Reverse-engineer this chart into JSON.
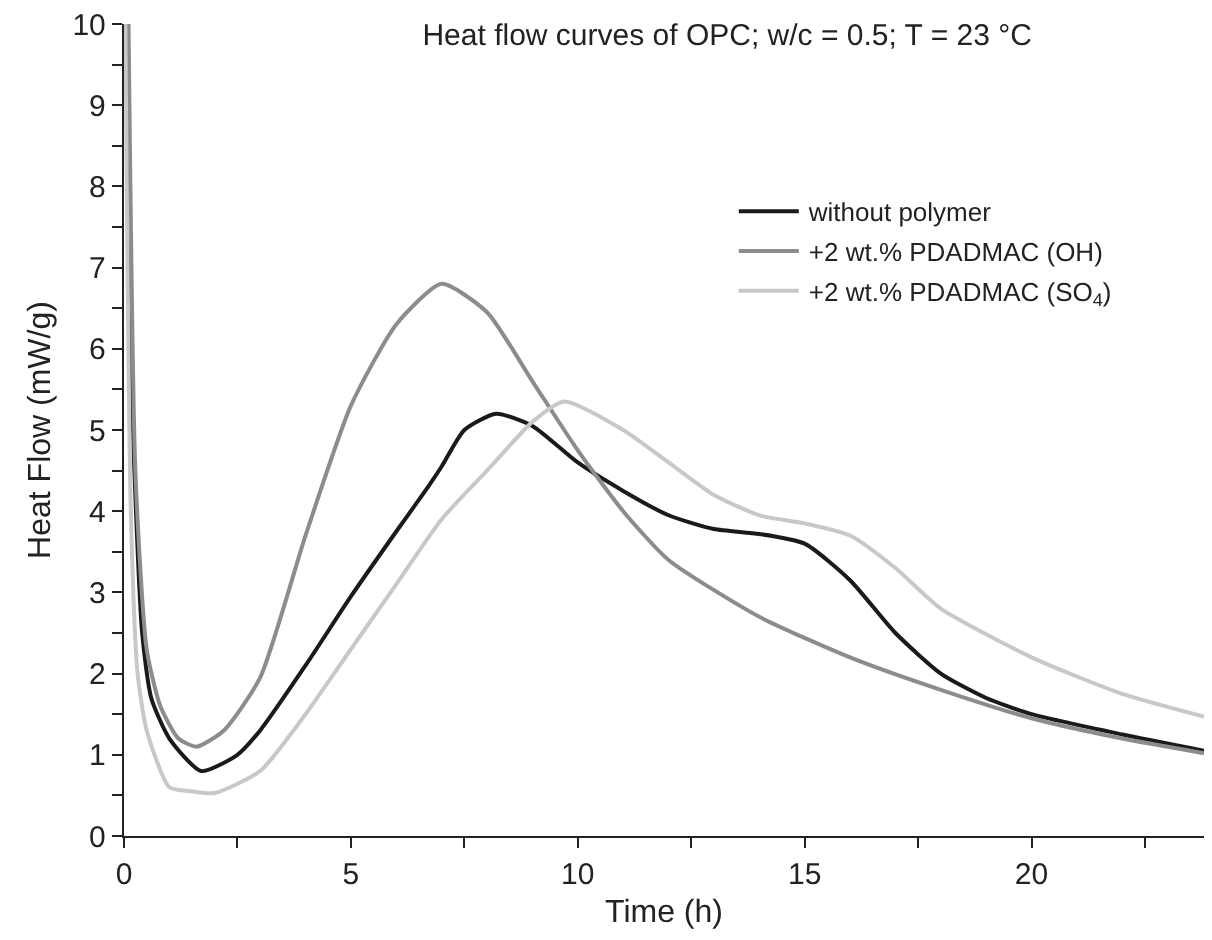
{
  "chart_data": {
    "type": "line",
    "title": "Heat flow curves of OPC; w/c = 0.5; T = 23 °C",
    "xlabel": "Time (h)",
    "ylabel": "Heat Flow (mW/g)",
    "xlim": [
      0,
      23.8
    ],
    "ylim": [
      0,
      10
    ],
    "xticks": [
      0,
      {
        "value": 2.5,
        "label": null
      },
      5,
      {
        "value": 7.5,
        "label": null
      },
      10,
      {
        "value": 12.5,
        "label": null
      },
      15,
      {
        "value": 17.5,
        "label": null
      },
      20,
      {
        "value": 22.5,
        "label": null
      }
    ],
    "yticks": [
      0,
      {
        "value": 0.5,
        "label": null
      },
      1,
      {
        "value": 1.5,
        "label": null
      },
      2,
      {
        "value": 2.5,
        "label": null
      },
      3,
      {
        "value": 3.5,
        "label": null
      },
      4,
      {
        "value": 4.5,
        "label": null
      },
      5,
      {
        "value": 5.5,
        "label": null
      },
      6,
      {
        "value": 6.5,
        "label": null
      },
      7,
      {
        "value": 7.5,
        "label": null
      },
      8,
      {
        "value": 8.5,
        "label": null
      },
      9,
      {
        "value": 9.5,
        "label": null
      },
      10
    ],
    "legend": "right",
    "line_style": "solid",
    "marker": "none",
    "series": [
      {
        "name": "without polymer",
        "color": "#1a1a1a",
        "x": [
          0.08,
          0.2,
          0.4,
          0.6,
          1,
          1.7,
          2.5,
          3,
          4,
          5,
          6,
          6.7,
          7,
          7.5,
          8.2,
          9,
          10,
          11,
          12,
          13,
          14,
          15,
          16,
          17,
          18,
          19,
          20,
          22,
          23.8
        ],
        "values": [
          10,
          5,
          2.5,
          1.7,
          1.2,
          0.8,
          1.0,
          1.3,
          2.1,
          2.95,
          3.75,
          4.3,
          4.55,
          5.0,
          5.2,
          5.05,
          4.6,
          4.25,
          3.95,
          3.78,
          3.72,
          3.6,
          3.15,
          2.5,
          2.0,
          1.7,
          1.5,
          1.25,
          1.05
        ]
      },
      {
        "name": "+2 wt.% PDADMAC (OH)",
        "color": "#8c8c8c",
        "x": [
          0.1,
          0.25,
          0.5,
          0.8,
          1.2,
          1.6,
          2.2,
          3,
          4,
          5,
          6,
          7,
          8,
          9,
          10,
          11,
          12,
          14,
          16,
          18,
          20,
          22,
          23.8
        ],
        "values": [
          10,
          4.5,
          2.3,
          1.6,
          1.2,
          1.1,
          1.3,
          1.95,
          3.7,
          5.3,
          6.3,
          6.8,
          6.45,
          5.6,
          4.75,
          4.0,
          3.4,
          2.7,
          2.2,
          1.8,
          1.45,
          1.2,
          1.02
        ]
      },
      {
        "name": "+2 wt.% PDADMAC (SO$_{4}$)",
        "color": "#c8c8c8",
        "x": [
          0.03,
          0.15,
          0.3,
          0.5,
          1,
          1.5,
          2,
          3,
          4,
          5,
          6,
          7,
          8,
          9,
          9.7,
          11,
          12,
          13,
          14,
          15,
          16,
          17,
          18,
          20,
          22,
          23.8
        ],
        "values": [
          10,
          4,
          2,
          1.3,
          0.6,
          0.55,
          0.53,
          0.8,
          1.5,
          2.3,
          3.1,
          3.9,
          4.5,
          5.1,
          5.35,
          5.0,
          4.6,
          4.2,
          3.95,
          3.85,
          3.7,
          3.3,
          2.8,
          2.2,
          1.75,
          1.47
        ]
      }
    ]
  }
}
